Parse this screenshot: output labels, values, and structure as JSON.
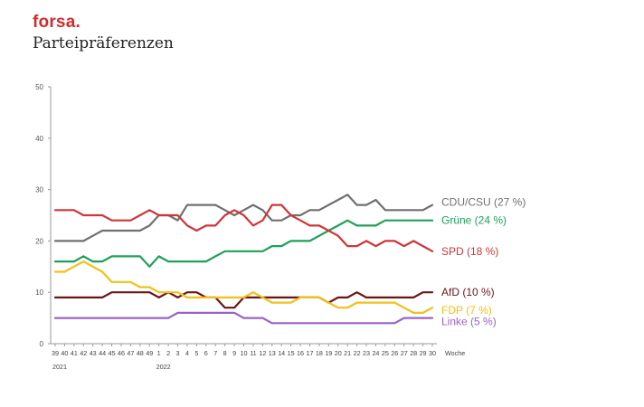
{
  "header": {
    "brand": "forsa.",
    "title": "Parteipräferenzen"
  },
  "chart_data": {
    "type": "line",
    "ylim": [
      0,
      50
    ],
    "yticks": [
      0,
      10,
      20,
      30,
      40,
      50
    ],
    "grid": false,
    "xlabel_unit": "Woche",
    "x": [
      "39",
      "40",
      "41",
      "42",
      "43",
      "44",
      "45",
      "46",
      "47",
      "48",
      "49",
      "1",
      "2",
      "3",
      "4",
      "5",
      "6",
      "7",
      "8",
      "9",
      "10",
      "11",
      "12",
      "13",
      "14",
      "15",
      "16",
      "17",
      "18",
      "19",
      "20",
      "21",
      "22",
      "23",
      "24",
      "25",
      "26",
      "27",
      "28",
      "29",
      "30"
    ],
    "year_labels": [
      {
        "label": "2021",
        "at": "39"
      },
      {
        "label": "2022",
        "at": "1"
      }
    ],
    "series": [
      {
        "name": "CDU/CSU",
        "end_label": "CDU/CSU (27 %)",
        "color": "#707070",
        "values": [
          20,
          20,
          20,
          20,
          21,
          22,
          22,
          22,
          22,
          22,
          23,
          25,
          25,
          24,
          27,
          27,
          27,
          27,
          26,
          25,
          26,
          27,
          26,
          24,
          24,
          25,
          25,
          26,
          26,
          27,
          28,
          29,
          27,
          27,
          28,
          26,
          26,
          26,
          26,
          26,
          27
        ]
      },
      {
        "name": "Grüne",
        "end_label": "Grüne (24 %)",
        "color": "#1fa05a",
        "values": [
          16,
          16,
          16,
          17,
          16,
          16,
          17,
          17,
          17,
          17,
          15,
          17,
          16,
          16,
          16,
          16,
          16,
          17,
          18,
          18,
          18,
          18,
          18,
          19,
          19,
          20,
          20,
          20,
          21,
          22,
          23,
          24,
          23,
          23,
          23,
          24,
          24,
          24,
          24,
          24,
          24
        ]
      },
      {
        "name": "SPD",
        "end_label": "SPD (18 %)",
        "color": "#d0353a",
        "values": [
          26,
          26,
          26,
          25,
          25,
          25,
          24,
          24,
          24,
          25,
          26,
          25,
          25,
          25,
          23,
          22,
          23,
          23,
          25,
          26,
          25,
          23,
          24,
          27,
          27,
          25,
          24,
          23,
          23,
          22,
          21,
          19,
          19,
          20,
          19,
          20,
          20,
          19,
          20,
          19,
          18
        ]
      },
      {
        "name": "AfD",
        "end_label": "AfD (10 %)",
        "color": "#6e1417",
        "values": [
          9,
          9,
          9,
          9,
          9,
          9,
          10,
          10,
          10,
          10,
          10,
          9,
          10,
          9,
          10,
          10,
          9,
          9,
          7,
          7,
          9,
          9,
          9,
          9,
          9,
          9,
          9,
          9,
          9,
          8,
          9,
          9,
          10,
          9,
          9,
          9,
          9,
          9,
          9,
          10,
          10
        ]
      },
      {
        "name": "FDP",
        "end_label": "FDP (7 %)",
        "color": "#f2c018",
        "values": [
          14,
          14,
          15,
          16,
          15,
          14,
          12,
          12,
          12,
          11,
          11,
          10,
          10,
          10,
          9,
          9,
          9,
          9,
          9,
          9,
          9,
          10,
          9,
          8,
          8,
          8,
          9,
          9,
          9,
          8,
          7,
          7,
          8,
          8,
          8,
          8,
          8,
          7,
          6,
          6,
          7
        ]
      },
      {
        "name": "Linke",
        "end_label": "Linke (5 %)",
        "color": "#9b63c6",
        "values": [
          5,
          5,
          5,
          5,
          5,
          5,
          5,
          5,
          5,
          5,
          5,
          5,
          5,
          6,
          6,
          6,
          6,
          6,
          6,
          6,
          5,
          5,
          5,
          4,
          4,
          4,
          4,
          4,
          4,
          4,
          4,
          4,
          4,
          4,
          4,
          4,
          4,
          5,
          5,
          5,
          5
        ]
      }
    ]
  }
}
